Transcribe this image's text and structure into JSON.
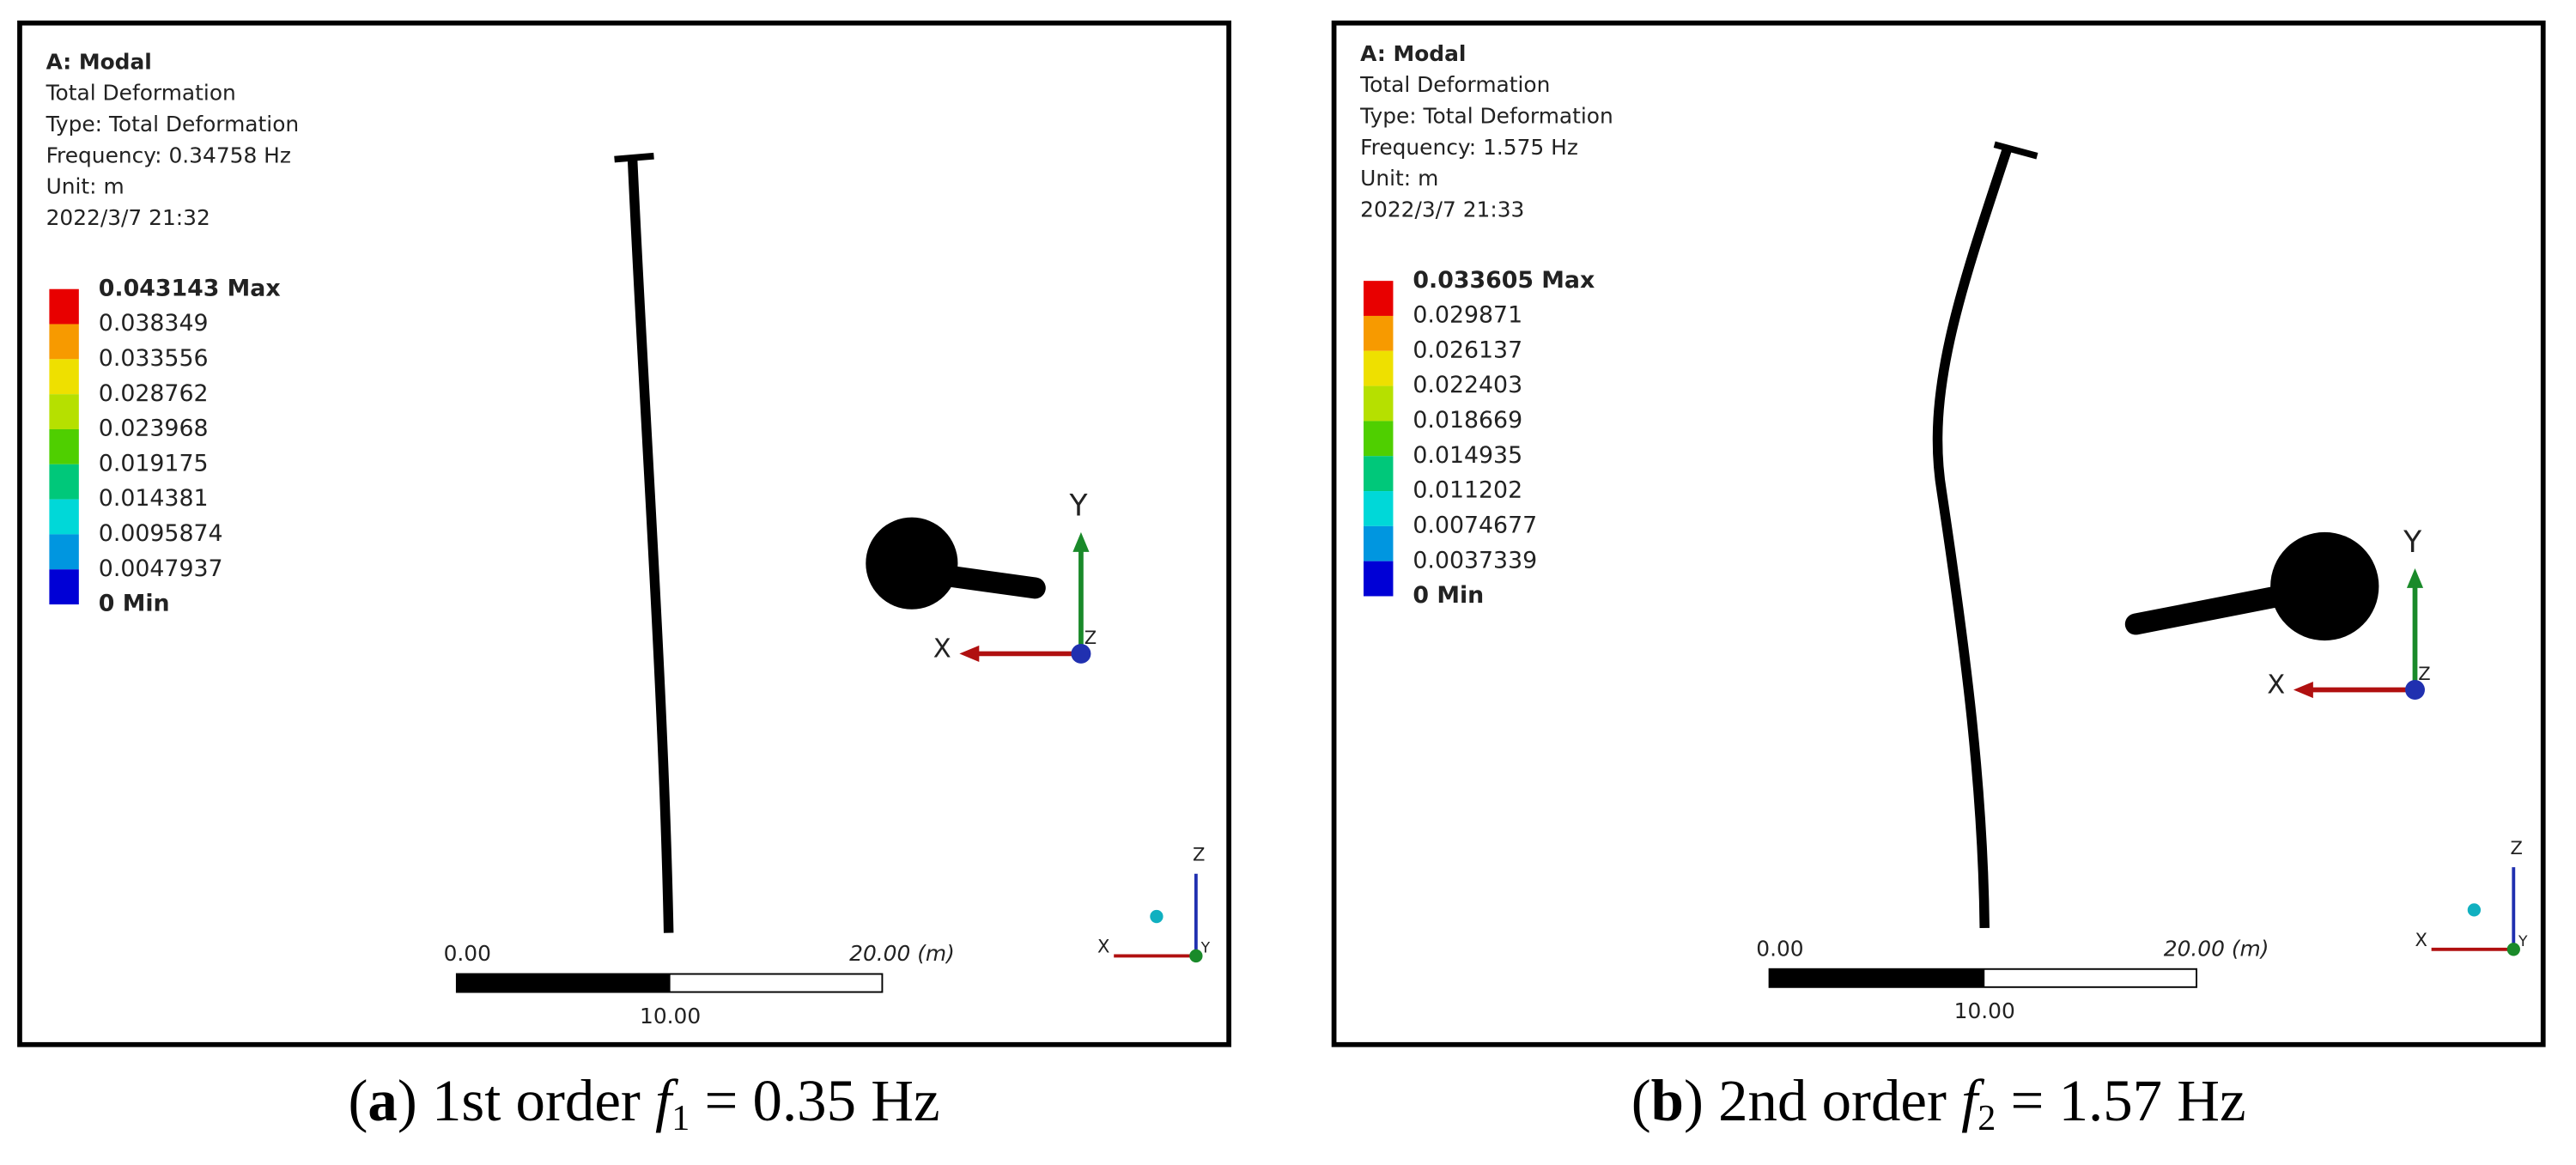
{
  "panels": [
    {
      "header": [
        "A: Modal",
        "Total Deformation",
        "Type: Total Deformation",
        "Frequency: 0.34758 Hz",
        "Unit: m",
        "2022/3/7 21:32"
      ],
      "legend": [
        "0.043143 Max",
        "0.038349",
        "0.033556",
        "0.028762",
        "0.023968",
        "0.019175",
        "0.014381",
        "0.0095874",
        "0.0047937",
        "0 Min"
      ],
      "scale": {
        "start": "0.00",
        "end": "20.00 (m)",
        "mid": "10.00"
      },
      "triad": {
        "y": "Y",
        "x": "X",
        "z": "Z"
      },
      "mini_triad": {
        "z": "Z",
        "x": "X",
        "y": "Y"
      },
      "caption": [
        "(",
        "a",
        ") 1st order ",
        "f",
        "1",
        " = 0.35 Hz"
      ]
    },
    {
      "header": [
        "A: Modal",
        "Total Deformation",
        "Type: Total Deformation",
        "Frequency: 1.575 Hz",
        "Unit: m",
        "2022/3/7 21:33"
      ],
      "legend": [
        "0.033605 Max",
        "0.029871",
        "0.026137",
        "0.022403",
        "0.018669",
        "0.014935",
        "0.011202",
        "0.0074677",
        "0.0037339",
        "0 Min"
      ],
      "scale": {
        "start": "0.00",
        "end": "20.00 (m)",
        "mid": "10.00"
      },
      "triad": {
        "y": "Y",
        "x": "X",
        "z": "Z"
      },
      "mini_triad": {
        "z": "Z",
        "x": "X",
        "y": "Y"
      },
      "caption": [
        "(",
        "b",
        ") 2nd order ",
        "f",
        "2",
        " = 1.57 Hz"
      ]
    }
  ]
}
